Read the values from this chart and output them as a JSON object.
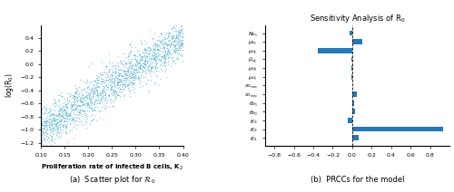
{
  "scatter": {
    "x_min": 0.1,
    "x_max": 0.4,
    "y_min": -1.25,
    "y_max": 0.6,
    "n_points": 2000,
    "seed": 42,
    "color": "#5ab4d6",
    "marker_size": 0.8,
    "alpha": 0.7,
    "xlabel": "Proliferation rate of infected B cells, K$_2$",
    "ylabel": "log(R$_0$)",
    "caption": "(a)  Scatter plot for $\\mathcal{R}_0$",
    "xticks": [
      0.1,
      0.15,
      0.2,
      0.25,
      0.3,
      0.35,
      0.4
    ],
    "yticks": [
      -1.2,
      -1.0,
      -0.8,
      -0.6,
      -0.4,
      -0.2,
      0.0,
      0.2,
      0.4
    ],
    "slope": 4.67,
    "intercept": -1.467,
    "noise_std": 0.16
  },
  "bar": {
    "title": "Sensitivity Analysis of R$_0$",
    "caption": "(b)  PRCCs for the model",
    "color": "#2878b5",
    "xlim": [
      -0.9,
      1.0
    ],
    "xticks": [
      -0.8,
      -0.6,
      -0.4,
      -0.2,
      0.0,
      0.2,
      0.4,
      0.6,
      0.8
    ],
    "labels": [
      "$N_{b_1}$",
      "$\\mu_{b_1}$",
      "$\\mu_{d_1}$",
      "$\\hat{\\mu}_{d_1}$",
      "$\\mu_{d_4}$",
      "$\\mu_{d_5}$",
      "$x_{2_{max}}$",
      "$x_{1_{max}}$",
      "$\\theta_{d_1}$",
      "$\\theta_{d_2}$",
      "$K_3$",
      "$K_2$",
      "$K_1$"
    ],
    "values": [
      -0.03,
      0.1,
      -0.35,
      -0.005,
      -0.01,
      -0.005,
      0.005,
      0.05,
      0.015,
      0.025,
      -0.05,
      0.93,
      0.07
    ]
  },
  "fig_width": 5.0,
  "fig_height": 2.12,
  "dpi": 100
}
